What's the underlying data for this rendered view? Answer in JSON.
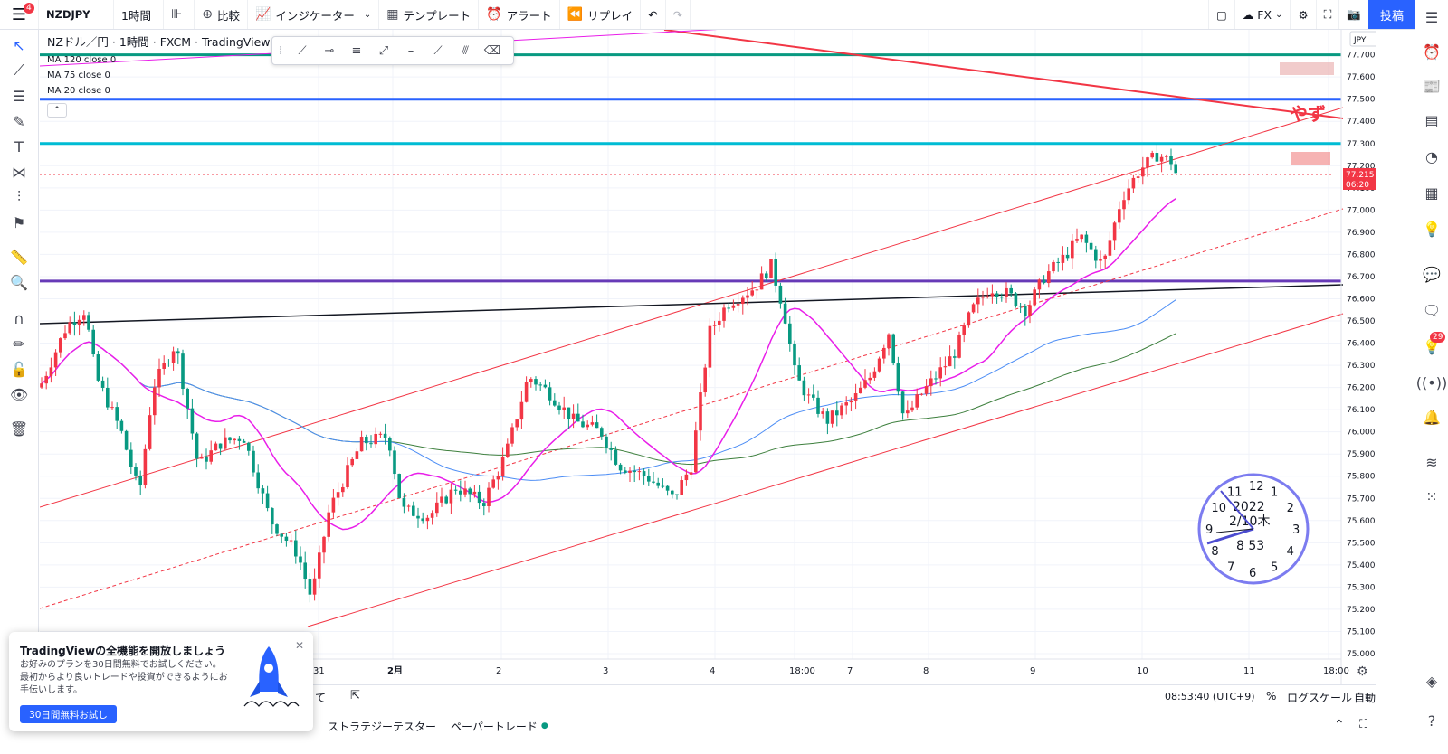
{
  "toolbar": {
    "menu_badge": "4",
    "symbol": "NZDJPY",
    "interval": "1時間",
    "compare_label": "比較",
    "indicators_label": "インジケーター",
    "templates_label": "テンプレート",
    "alert_label": "アラート",
    "replay_label": "リプレイ",
    "fx_label": "FX",
    "post_label": "投稿"
  },
  "legend": {
    "title": "NZドル／円 · 1時間 · FXCM · TradingView",
    "ma120": "MA 120 close 0",
    "ma75": "MA 75 close 0",
    "ma20": "MA 20 close 0"
  },
  "price_scale": {
    "currency": "JPY",
    "last_price": "77.215",
    "countdown": "06:20"
  },
  "annotations": {
    "yazu_text": "やず"
  },
  "clock": {
    "date_line1": "2022",
    "date_line2": "2/10木",
    "time_line": "8 53"
  },
  "status_bar": {
    "clock": "08:53:40 (UTC+9)",
    "percent": "%",
    "log_scale": "ログスケール",
    "auto": "自動",
    "partial_text": "て"
  },
  "bottom_tabs": {
    "strategy_tester": "ストラテジーテスター",
    "paper_trading": "ペーパートレード"
  },
  "promo": {
    "title": "TradingViewの全機能を開放しましょう",
    "body": "お好みのプランを30日間無料でお試しください。最初からより良いトレードや投資ができるようにお手伝いします。",
    "cta": "30日間無料お試し"
  },
  "right_badge": "29",
  "chart_data": {
    "type": "candlestick",
    "title": "NZドル／円 · 1時間 · FXCM · TradingView",
    "ylim": [
      74.95,
      77.85
    ],
    "yticks": [
      "77.700",
      "77.600",
      "77.500",
      "77.400",
      "77.300",
      "77.200",
      "77.100",
      "77.000",
      "76.900",
      "76.800",
      "76.700",
      "76.600",
      "76.500",
      "76.400",
      "76.300",
      "76.200",
      "76.100",
      "76.000",
      "75.900",
      "75.800",
      "75.700",
      "75.600",
      "75.500",
      "75.400",
      "75.300",
      "75.200",
      "75.100",
      "75.000"
    ],
    "xticks": [
      "31",
      "2月",
      "2",
      "3",
      "4",
      "18:00",
      "7",
      "8",
      "9",
      "10",
      "11",
      "18:00"
    ],
    "horizontal_lines": [
      {
        "price": 77.7,
        "color": "#089981"
      },
      {
        "price": 77.5,
        "color": "#2962ff"
      },
      {
        "price": 77.3,
        "color": "#00bcd4"
      },
      {
        "price": 76.68,
        "color": "#673ab7"
      }
    ],
    "ma_colors": {
      "ma20": "#e91ee9",
      "ma75": "#4c8df5",
      "ma120": "#3d7f3d"
    },
    "candle_colors": {
      "up": "#f23645",
      "down": "#089981"
    }
  }
}
